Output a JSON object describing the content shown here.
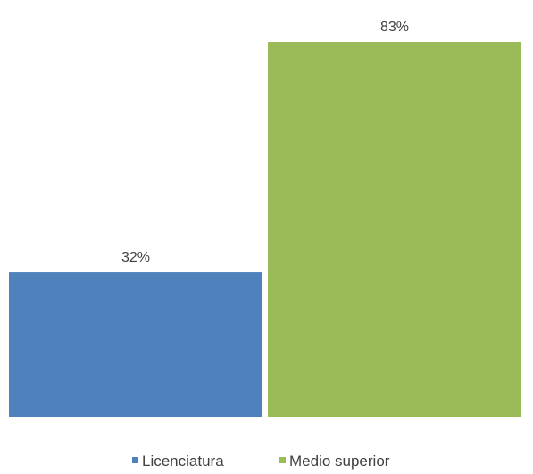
{
  "chart_data": {
    "type": "bar",
    "categories": [
      "Licenciatura",
      "Medio superior"
    ],
    "values": [
      32,
      83
    ],
    "value_labels": [
      "32%",
      "83%"
    ],
    "ylim": [
      0,
      83
    ],
    "grid": false,
    "legend_position": "bottom",
    "colors": [
      "#4F81BD",
      "#9BBB59"
    ]
  },
  "legend": {
    "items": [
      {
        "label": "Licenciatura",
        "color": "#4F81BD"
      },
      {
        "label": "Medio superior",
        "color": "#9BBB59"
      }
    ]
  }
}
